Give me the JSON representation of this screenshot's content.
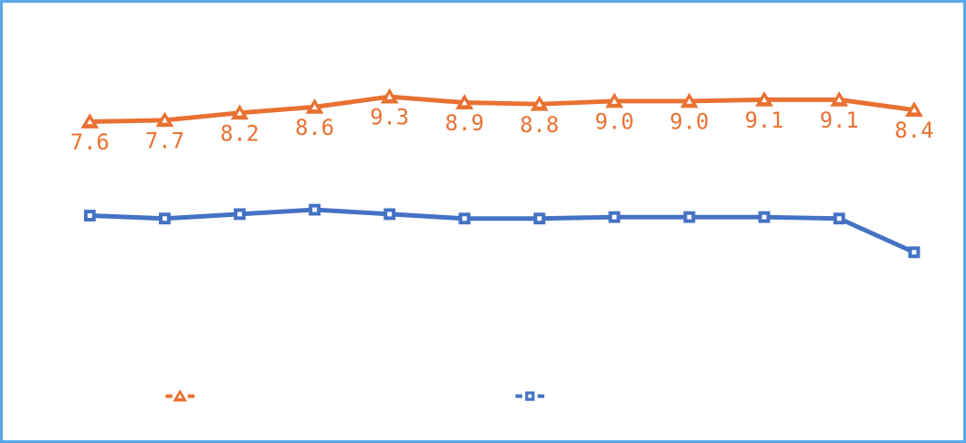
{
  "frame": {
    "border_color": "#57a8e8",
    "background": "#ffffff"
  },
  "chart_data": {
    "type": "line",
    "title": "",
    "gridlines": false,
    "axes_visible": false,
    "x_tick_labels_visible": false,
    "num_points": 12,
    "legend_position": "bottom",
    "legend_labels_visible": false,
    "series": [
      {
        "name": "series-1-orange",
        "color": "#e97132",
        "marker": "triangle",
        "marker_inner_color": "#ffffff",
        "line_width": 5,
        "values": [
          7.6,
          7.7,
          8.2,
          8.6,
          9.3,
          8.9,
          8.8,
          9.0,
          9.0,
          9.1,
          9.1,
          8.4
        ],
        "data_labels": [
          "7.6",
          "7.7",
          "8.2",
          "8.6",
          "9.3",
          "8.9",
          "8.8",
          "9.0",
          "9.0",
          "9.1",
          "9.1",
          "8.4"
        ],
        "data_labels_visible": true
      },
      {
        "name": "series-2-blue",
        "color": "#4472c4",
        "marker": "square",
        "marker_inner_color": "#ffffff",
        "line_width": 5,
        "values_are_estimated": true,
        "values": [
          1.2,
          1.0,
          1.3,
          1.6,
          1.3,
          1.0,
          1.0,
          1.1,
          1.1,
          1.1,
          1.0,
          -1.3
        ],
        "data_labels_visible": false
      }
    ],
    "legend": {
      "items": [
        {
          "series": "series-1-orange",
          "marker": "triangle",
          "color": "#e97132",
          "label": ""
        },
        {
          "series": "series-2-blue",
          "marker": "square",
          "color": "#4472c4",
          "label": ""
        }
      ]
    }
  }
}
